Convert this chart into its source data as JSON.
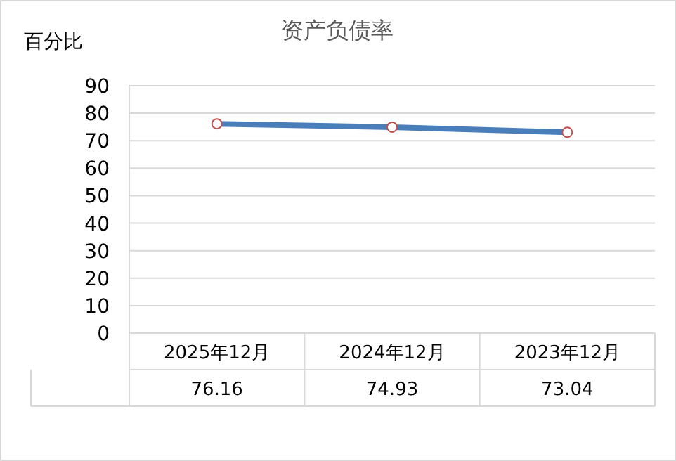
{
  "chart_data": {
    "type": "line",
    "title": "资产负债率",
    "ylabel": "百分比",
    "categories": [
      "2025年12月",
      "2024年12月",
      "2023年12月"
    ],
    "series": [
      {
        "color": "#4a7ebb",
        "values": [
          76.16,
          74.93,
          73.04
        ]
      }
    ],
    "ylim": [
      0,
      90
    ],
    "yticks": [
      0,
      10,
      20,
      30,
      40,
      50,
      60,
      70,
      80,
      90
    ],
    "grid": "y",
    "marker": "circle",
    "line_style": "solid",
    "data_labels": true
  }
}
